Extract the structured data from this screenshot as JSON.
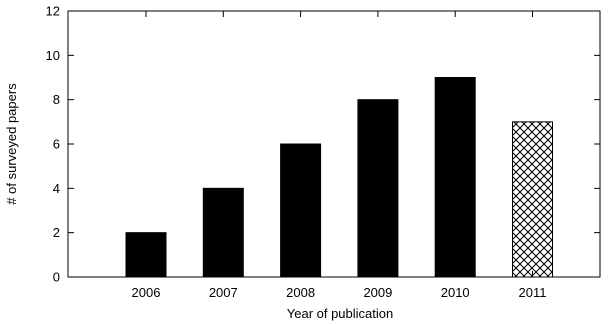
{
  "chart_data": {
    "type": "bar",
    "categories": [
      "2006",
      "2007",
      "2008",
      "2009",
      "2010",
      "2011"
    ],
    "values": [
      2,
      4,
      6,
      8,
      9,
      7
    ],
    "bar_styles": [
      "solid",
      "solid",
      "solid",
      "solid",
      "solid",
      "crosshatch"
    ],
    "xlabel": "Year of publication",
    "ylabel": "# of surveyed papers",
    "ylim": [
      0,
      12
    ],
    "yticks": [
      "0",
      "2",
      "4",
      "6",
      "8",
      "10",
      "12"
    ],
    "grid": false,
    "legend": "none",
    "colors": {
      "bar_fill": "#000000",
      "hatch_fill": "#ffffff",
      "axis": "#000000"
    }
  }
}
